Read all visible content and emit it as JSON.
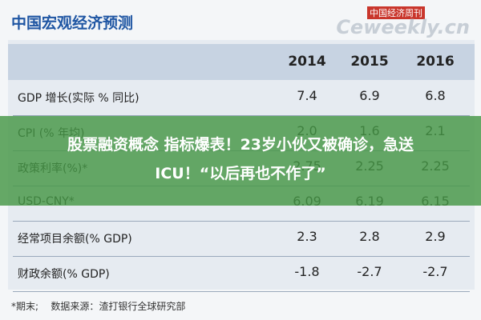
{
  "header": {
    "title": "中国宏观经济预测",
    "watermark_top": "中国经济周刊",
    "watermark": "Ceweekly.cn"
  },
  "table": {
    "columns": [
      "2014",
      "2015",
      "2016"
    ],
    "rows": [
      [
        "GDP 增长(实际 % 同比)",
        "7.4",
        "6.9",
        "6.8"
      ],
      [
        "CPI (% 年均)",
        "2.0",
        "1.6",
        "2.1"
      ],
      [
        "政策利率(%)*",
        "2.75",
        "2.25",
        "2.25"
      ],
      [
        "USD-CNY*",
        "6.09",
        "6.19",
        "6.15"
      ],
      [
        "经常项目余额(% GDP)",
        "2.3",
        "2.8",
        "2.9"
      ],
      [
        "财政余额(% GDP)",
        "-1.8",
        "-2.7",
        "-2.7"
      ]
    ]
  },
  "footer": {
    "note": "*期末;",
    "source": "数据来源：渣打银行全球研究部"
  },
  "overlay": {
    "lines": [
      "股票融资概念 指标爆表！23岁小伙又被确诊，急送",
      "ICU！“以后再也不作了”"
    ]
  }
}
